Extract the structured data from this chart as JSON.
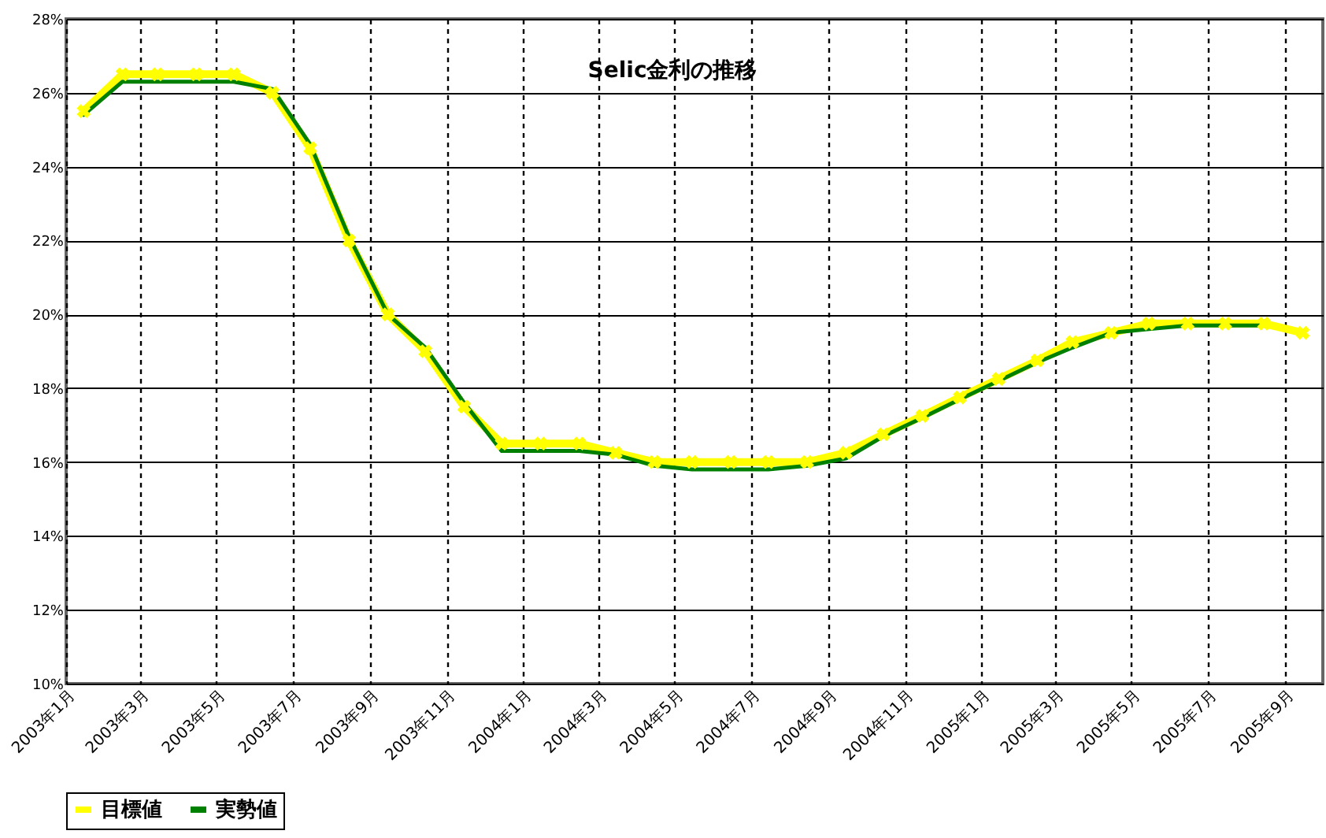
{
  "chart_data": {
    "type": "line",
    "title": "Selic金利の推移",
    "x": [
      "2003-01-15",
      "2003-02-15",
      "2003-03-15",
      "2003-04-15",
      "2003-05-15",
      "2003-06-15",
      "2003-07-15",
      "2003-08-15",
      "2003-09-15",
      "2003-10-15",
      "2003-11-15",
      "2003-12-15",
      "2004-01-15",
      "2004-02-15",
      "2004-03-15",
      "2004-04-15",
      "2004-05-15",
      "2004-06-15",
      "2004-07-15",
      "2004-08-15",
      "2004-09-15",
      "2004-10-15",
      "2004-11-15",
      "2004-12-15",
      "2005-01-15",
      "2005-02-15",
      "2005-03-15",
      "2005-04-15",
      "2005-05-15",
      "2005-06-15",
      "2005-07-15",
      "2005-08-15",
      "2005-09-15"
    ],
    "series": [
      {
        "name": "目標値",
        "color": "#ffff00",
        "marker": "cross",
        "values": [
          25.5,
          26.5,
          26.5,
          26.5,
          26.5,
          26.0,
          24.5,
          22.0,
          20.0,
          19.0,
          17.5,
          16.5,
          16.5,
          16.5,
          16.25,
          16.0,
          16.0,
          16.0,
          16.0,
          16.0,
          16.25,
          16.75,
          17.25,
          17.75,
          18.25,
          18.75,
          19.25,
          19.5,
          19.75,
          19.75,
          19.75,
          19.75,
          19.5
        ]
      },
      {
        "name": "実勢値",
        "color": "#008000",
        "marker": "none",
        "values": [
          25.4,
          26.3,
          26.3,
          26.3,
          26.3,
          26.1,
          24.6,
          22.1,
          20.0,
          19.1,
          17.6,
          16.3,
          16.3,
          16.3,
          16.2,
          15.9,
          15.8,
          15.8,
          15.8,
          15.9,
          16.1,
          16.7,
          17.2,
          17.7,
          18.2,
          18.7,
          19.1,
          19.5,
          19.6,
          19.7,
          19.7,
          19.7,
          null
        ]
      }
    ],
    "xlim": [
      "2003-01-01",
      "2005-10-01"
    ],
    "xticks": [
      {
        "value": "2003-01-01",
        "label": "2003年1月"
      },
      {
        "value": "2003-03-01",
        "label": "2003年3月"
      },
      {
        "value": "2003-05-01",
        "label": "2003年5月"
      },
      {
        "value": "2003-07-01",
        "label": "2003年7月"
      },
      {
        "value": "2003-09-01",
        "label": "2003年9月"
      },
      {
        "value": "2003-11-01",
        "label": "2003年11月"
      },
      {
        "value": "2004-01-01",
        "label": "2004年1月"
      },
      {
        "value": "2004-03-01",
        "label": "2004年3月"
      },
      {
        "value": "2004-05-01",
        "label": "2004年5月"
      },
      {
        "value": "2004-07-01",
        "label": "2004年7月"
      },
      {
        "value": "2004-09-01",
        "label": "2004年9月"
      },
      {
        "value": "2004-11-01",
        "label": "2004年11月"
      },
      {
        "value": "2005-01-01",
        "label": "2005年1月"
      },
      {
        "value": "2005-03-01",
        "label": "2005年3月"
      },
      {
        "value": "2005-05-01",
        "label": "2005年5月"
      },
      {
        "value": "2005-07-01",
        "label": "2005年7月"
      },
      {
        "value": "2005-09-01",
        "label": "2005年9月"
      }
    ],
    "ylim": [
      10,
      28
    ],
    "yticks": [
      {
        "value": 10,
        "label": "10%"
      },
      {
        "value": 12,
        "label": "12%"
      },
      {
        "value": 14,
        "label": "14%"
      },
      {
        "value": 16,
        "label": "16%"
      },
      {
        "value": 18,
        "label": "18%"
      },
      {
        "value": 20,
        "label": "20%"
      },
      {
        "value": 22,
        "label": "22%"
      },
      {
        "value": 24,
        "label": "24%"
      },
      {
        "value": 26,
        "label": "26%"
      },
      {
        "value": 28,
        "label": "28%"
      }
    ],
    "grid": true,
    "legend": "bottom"
  }
}
